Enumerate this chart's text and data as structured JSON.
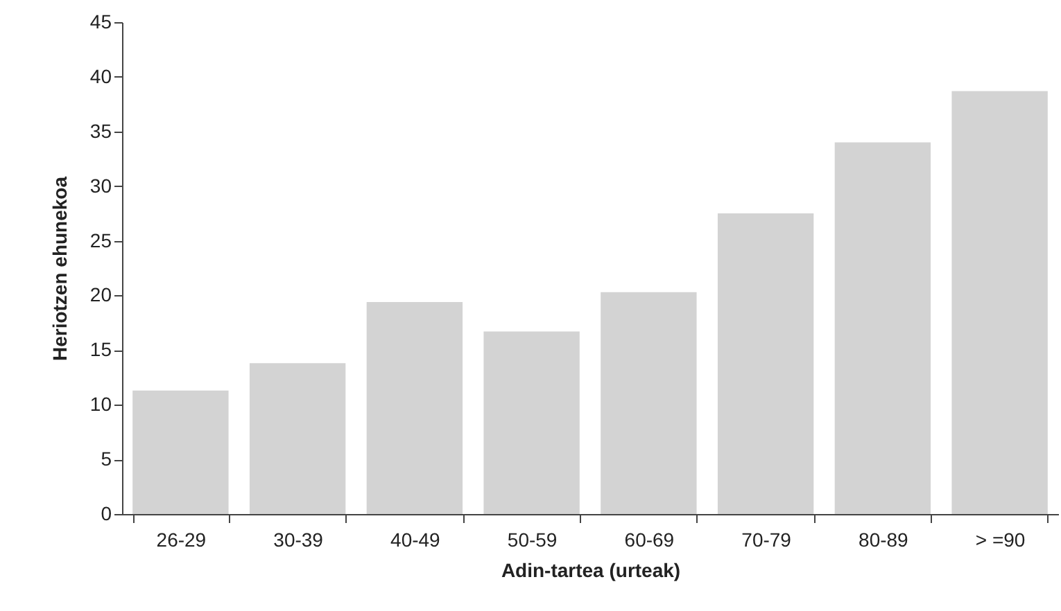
{
  "chart_data": {
    "type": "bar",
    "xlabel": "Adin-tartea (urteak)",
    "ylabel": "Heriotzen ehunekoa",
    "categories": [
      "26-29",
      "30-39",
      "40-49",
      "50-59",
      "60-69",
      "70-79",
      "80-89",
      "> =90"
    ],
    "values": [
      11.3,
      13.8,
      19.4,
      16.7,
      20.3,
      27.5,
      34.0,
      38.7
    ],
    "color": "#d3d3d3",
    "ylim": [
      0,
      45
    ],
    "yticks": [
      0,
      5,
      10,
      15,
      20,
      25,
      30,
      35,
      40,
      45
    ],
    "grid": false
  }
}
